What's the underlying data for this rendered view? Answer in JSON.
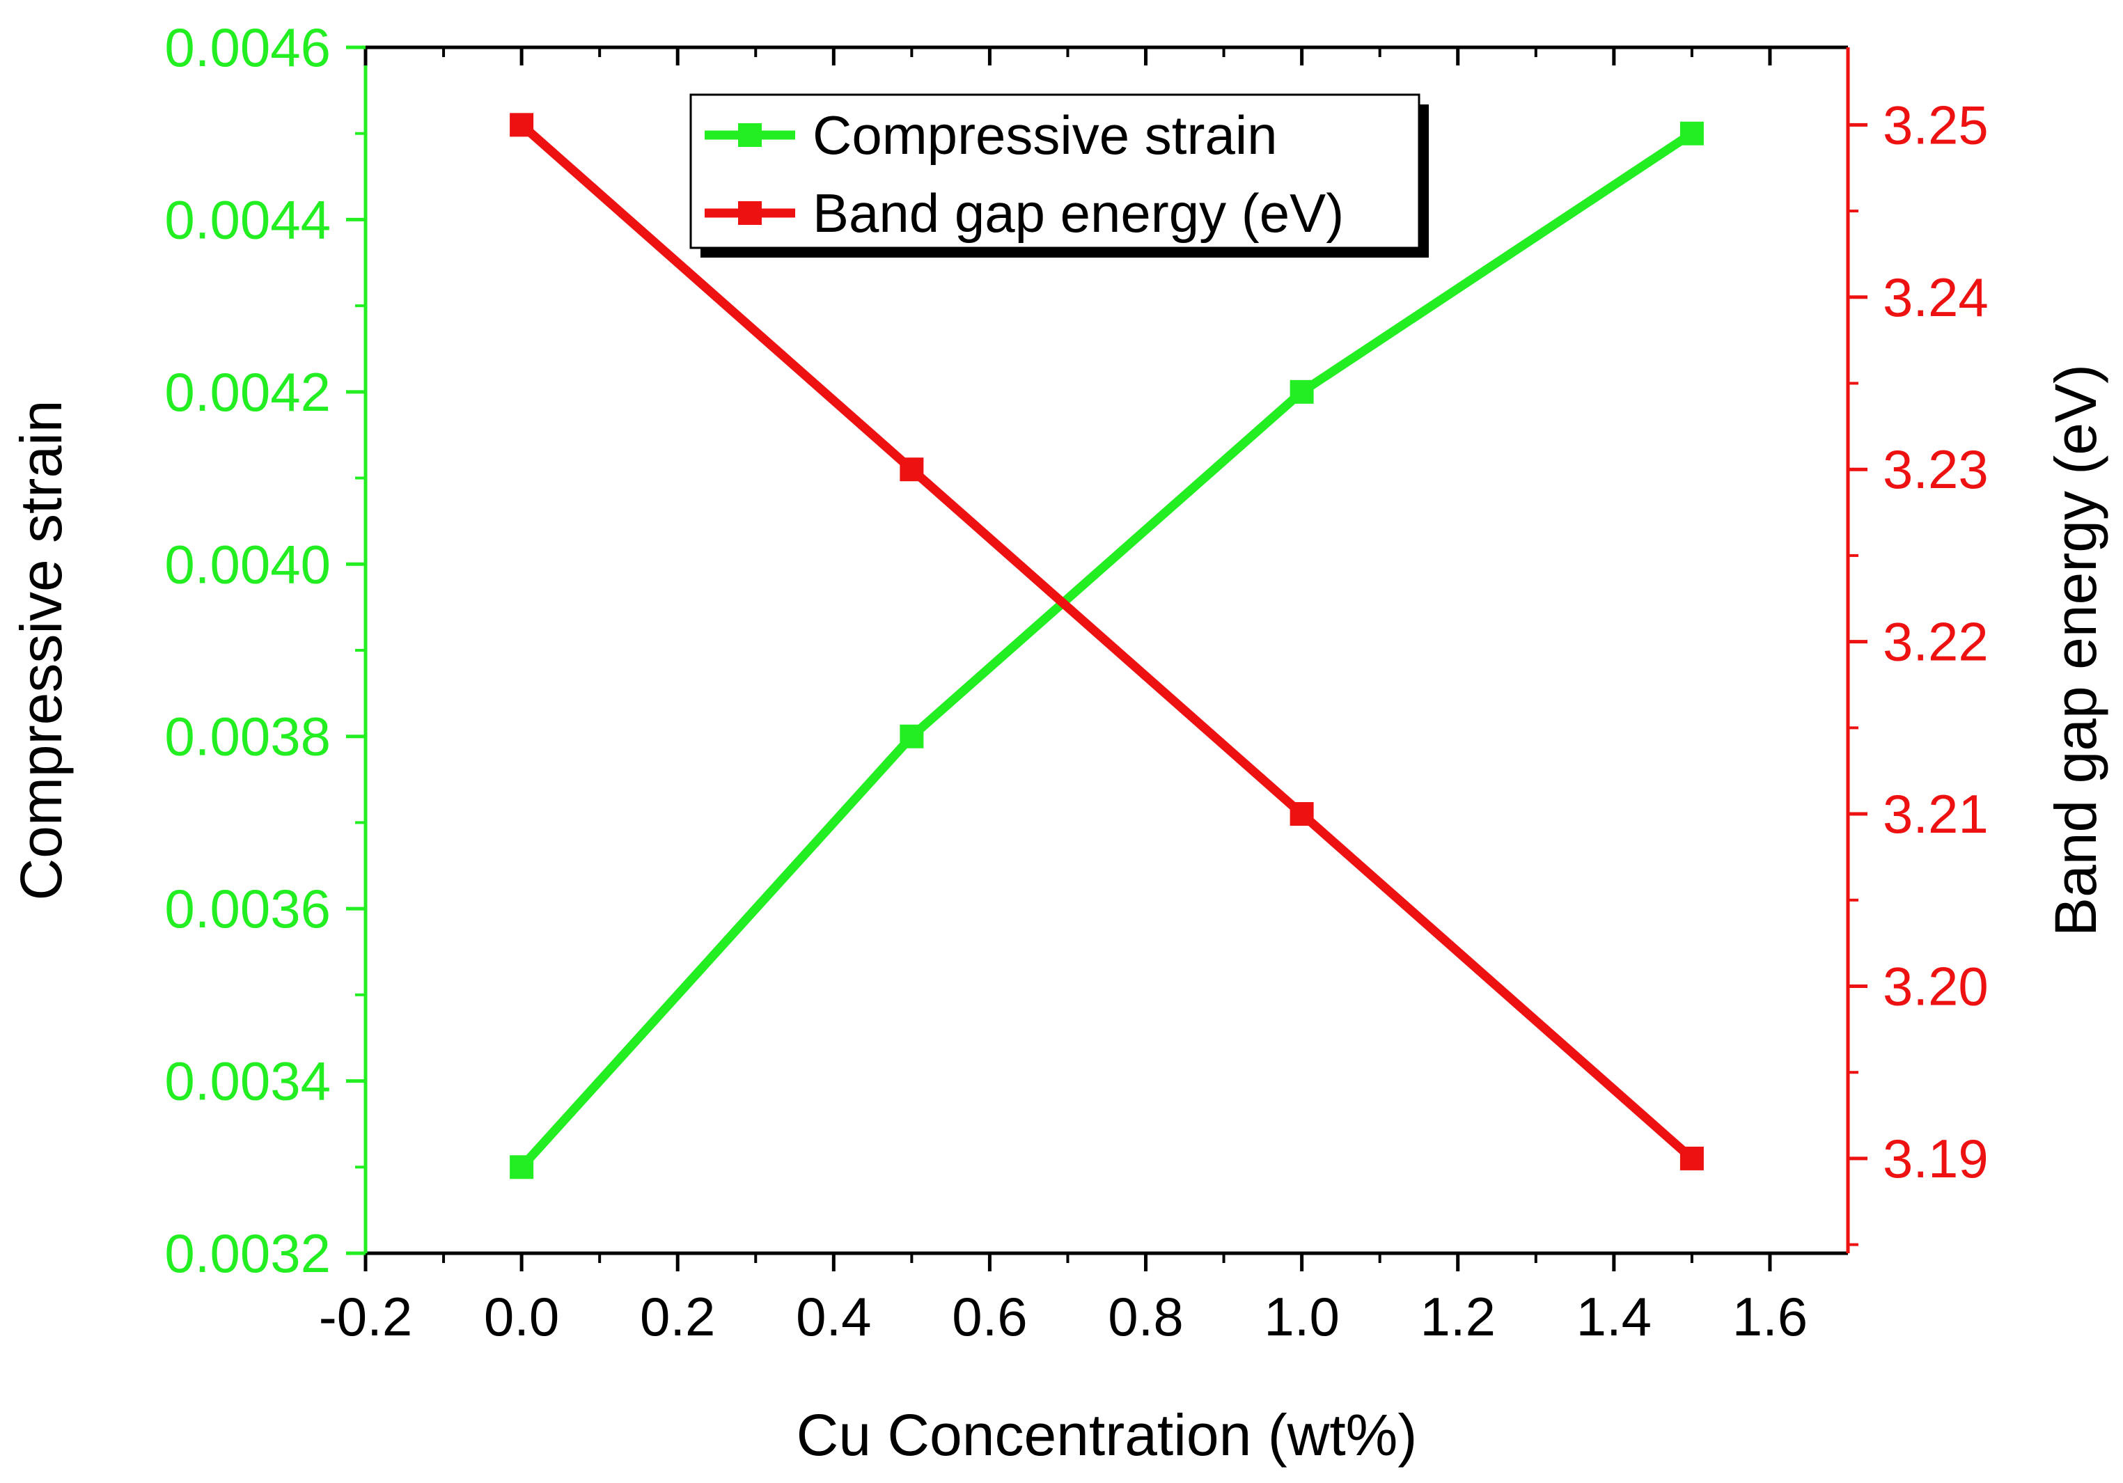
{
  "chart_data": {
    "type": "line",
    "x": [
      0.0,
      0.5,
      1.0,
      1.5
    ],
    "xlabel": "Cu Concentration (wt%)",
    "xlim": [
      -0.2,
      1.7
    ],
    "xticks": [
      "-0.2",
      "0.0",
      "0.2",
      "0.4",
      "0.6",
      "0.8",
      "1.0",
      "1.2",
      "1.4",
      "1.6"
    ],
    "y_left": {
      "label": "Compressive strain",
      "lim": [
        0.0032,
        0.0046
      ],
      "ticks": [
        "0.0032",
        "0.0034",
        "0.0036",
        "0.0038",
        "0.0040",
        "0.0042",
        "0.0044",
        "0.0046"
      ],
      "color": "#22ee22"
    },
    "y_right": {
      "label": "Band gap energy (eV)",
      "lim": [
        3.1845,
        3.2545
      ],
      "ticks": [
        "3.19",
        "3.20",
        "3.21",
        "3.22",
        "3.23",
        "3.24",
        "3.25"
      ],
      "color": "#ee1111"
    },
    "series": [
      {
        "name": "Compressive strain",
        "axis": "left",
        "color": "#22ee22",
        "values": [
          0.0033,
          0.0038,
          0.0042,
          0.0045
        ]
      },
      {
        "name": "Band gap energy (eV)",
        "axis": "right",
        "color": "#ee1111",
        "values": [
          3.25,
          3.23,
          3.21,
          3.19
        ]
      }
    ],
    "legend": {
      "position": "top-center",
      "entries": [
        "Compressive strain",
        "Band gap energy (eV)"
      ]
    },
    "grid": false
  }
}
